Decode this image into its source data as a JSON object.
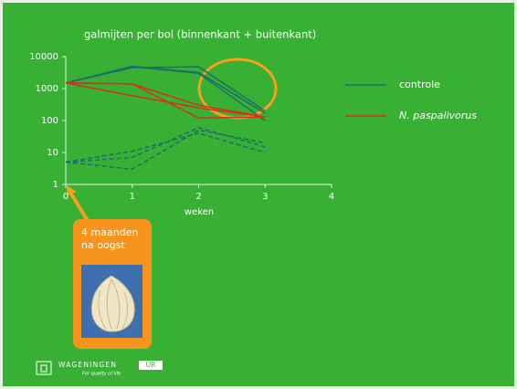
{
  "chart_data": {
    "type": "line",
    "title": "galmijten per bol (binnenkant + buitenkant)",
    "xlabel": "weken",
    "x": [
      0,
      1,
      2,
      3
    ],
    "xlim": [
      0,
      4
    ],
    "xticks": [
      0,
      1,
      2,
      3,
      4
    ],
    "ylim": [
      1,
      10000
    ],
    "yticks": [
      1,
      10,
      100,
      1000,
      10000
    ],
    "log_y": true,
    "legend": "right",
    "series": [
      {
        "name": "controle",
        "color": "#1f6e6a",
        "dashed": false,
        "values": [
          1500,
          4500,
          4800,
          200
        ]
      },
      {
        "name": "controle",
        "color": "#1f6e6a",
        "dashed": false,
        "values": [
          1500,
          5000,
          3200,
          170
        ]
      },
      {
        "name": "controle",
        "color": "#1f6e6a",
        "dashed": false,
        "values": [
          1500,
          4800,
          3000,
          100
        ]
      },
      {
        "name": "N. paspalivorus",
        "color": "#d9301c",
        "dashed": false,
        "values": [
          1500,
          1400,
          120,
          130
        ]
      },
      {
        "name": "N. paspalivorus",
        "color": "#d9301c",
        "dashed": false,
        "values": [
          1500,
          600,
          250,
          130
        ]
      },
      {
        "name": "N. paspalivorus",
        "color": "#d9301c",
        "dashed": false,
        "values": [
          1500,
          1400,
          300,
          130
        ]
      },
      {
        "name": "controle",
        "color": "#1f6e6a",
        "dashed": true,
        "values": [
          5,
          3,
          50,
          20
        ]
      },
      {
        "name": "controle",
        "color": "#1f6e6a",
        "dashed": true,
        "values": [
          5,
          7,
          60,
          15
        ]
      },
      {
        "name": "controle",
        "color": "#1f6e6a",
        "dashed": true,
        "values": [
          5,
          11,
          40,
          10
        ]
      }
    ]
  },
  "callout": {
    "lines": [
      "4 maanden",
      "na oogst"
    ]
  },
  "logo": {
    "name": "WAGENINGEN",
    "badge": "UR",
    "tagline": "For quality of life"
  }
}
